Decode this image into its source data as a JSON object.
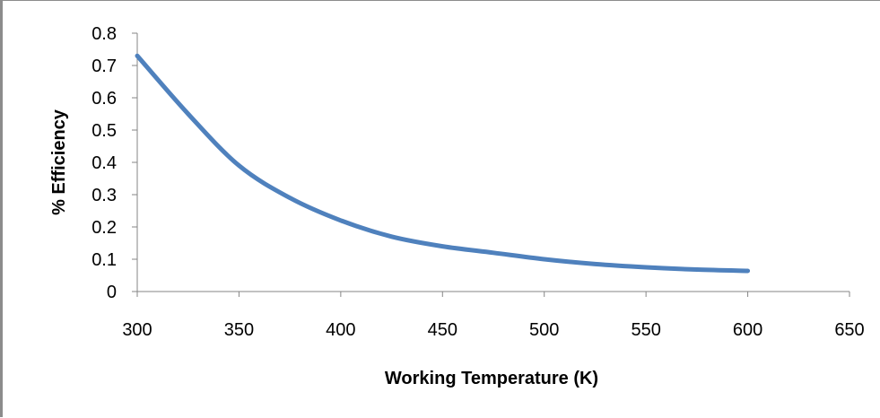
{
  "chart_data": {
    "type": "line",
    "title": "",
    "xlabel": "Working Temperature (K)",
    "ylabel": "% Efficiency",
    "xlim": [
      300,
      650
    ],
    "ylim": [
      0,
      0.8
    ],
    "x_ticks": [
      "300",
      "350",
      "400",
      "450",
      "500",
      "550",
      "600",
      "650"
    ],
    "y_ticks": [
      "0",
      "0.1",
      "0.2",
      "0.3",
      "0.4",
      "0.5",
      "0.6",
      "0.7",
      "0.8"
    ],
    "grid": false,
    "legend": "none",
    "series": [
      {
        "color": "#4f81bd",
        "x": [
          300,
          325,
          350,
          375,
          400,
          425,
          450,
          475,
          500,
          525,
          550,
          575,
          600
        ],
        "y": [
          0.73,
          0.55,
          0.39,
          0.29,
          0.22,
          0.17,
          0.14,
          0.12,
          0.1,
          0.085,
          0.075,
          0.068,
          0.064
        ]
      }
    ]
  }
}
